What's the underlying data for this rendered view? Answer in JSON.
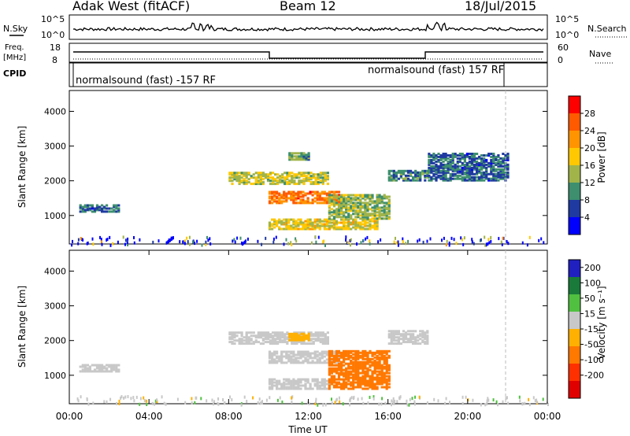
{
  "header": {
    "station": "Adak West (fitACF)",
    "beam": "Beam 12",
    "date": "18/Jul/2015"
  },
  "panels": {
    "nsky": {
      "label": "N.Sky",
      "right_label": "N.Search",
      "ticks": [
        "10^5",
        "10^0"
      ]
    },
    "freq": {
      "label_line1": "Freq.",
      "label_line2": "[MHz]",
      "ticks_left": [
        "18",
        "8"
      ],
      "right_label": "Nave",
      "ticks_right": [
        "60",
        "0"
      ]
    },
    "cpid": {
      "label": "CPID",
      "mode1": "normalsound (fast) -157 RF",
      "mode2": "normalsound (fast) 157 RF"
    }
  },
  "colorbars": {
    "power": {
      "label": "Power [dB]",
      "ticks": [
        "28",
        "24",
        "20",
        "16",
        "12",
        "8",
        "4"
      ],
      "colors": [
        "#ff0000",
        "#ff5a00",
        "#ff9400",
        "#ffc800",
        "#a0b44a",
        "#3d8f6e",
        "#1f3aa0",
        "#0000ff"
      ]
    },
    "velocity": {
      "label": "Velocity [m s⁻¹]",
      "ticks": [
        "200",
        "100",
        "50",
        "15",
        "-15",
        "-50",
        "-100",
        "-200"
      ],
      "colors": [
        "#2020c0",
        "#1a7a3a",
        "#50c040",
        "#c8c8c8",
        "#ffb000",
        "#ff7800",
        "#ff3000",
        "#e00000"
      ]
    }
  },
  "chart_data": [
    {
      "type": "heatmap",
      "name": "power",
      "ylabel": "Slant Range [km]",
      "ylim": [
        180,
        4600
      ],
      "yticks": [
        "1000",
        "2000",
        "3000",
        "4000"
      ],
      "zrange_db": [
        0,
        30
      ],
      "bands": [
        {
          "t0": 8.0,
          "t1": 13.0,
          "r0": 1900,
          "r1": 2250,
          "v": 14
        },
        {
          "t0": 10.0,
          "t1": 13.5,
          "r0": 1350,
          "r1": 1700,
          "v": 24
        },
        {
          "t0": 10.0,
          "t1": 15.5,
          "r0": 600,
          "r1": 900,
          "v": 16
        },
        {
          "t0": 13.0,
          "t1": 16.0,
          "r0": 900,
          "r1": 1600,
          "v": 12
        },
        {
          "t0": 11.0,
          "t1": 12.0,
          "r0": 2600,
          "r1": 2800,
          "v": 10
        },
        {
          "t0": 16.0,
          "t1": 18.0,
          "r0": 2000,
          "r1": 2300,
          "v": 8
        },
        {
          "t0": 18.0,
          "t1": 22.0,
          "r0": 2000,
          "r1": 2800,
          "v": 6
        },
        {
          "t0": 0.5,
          "t1": 2.5,
          "r0": 1100,
          "r1": 1300,
          "v": 6
        }
      ]
    },
    {
      "type": "heatmap",
      "name": "velocity",
      "xlabel": "Time UT",
      "ylabel": "Slant Range [km]",
      "ylim": [
        180,
        4600
      ],
      "yticks": [
        "1000",
        "2000",
        "3000",
        "4000"
      ],
      "xticks": [
        "00:00",
        "04:00",
        "08:00",
        "12:00",
        "16:00",
        "20:00",
        "00:00"
      ],
      "bands": [
        {
          "t0": 8.0,
          "t1": 13.0,
          "r0": 1900,
          "r1": 2250,
          "v": 0
        },
        {
          "t0": 10.0,
          "t1": 13.5,
          "r0": 1350,
          "r1": 1700,
          "v": 0
        },
        {
          "t0": 10.0,
          "t1": 13.0,
          "r0": 600,
          "r1": 900,
          "v": 0
        },
        {
          "t0": 13.0,
          "t1": 16.0,
          "r0": 600,
          "r1": 1700,
          "v": -60
        },
        {
          "t0": 11.0,
          "t1": 12.0,
          "r0": 2000,
          "r1": 2200,
          "v": -40
        },
        {
          "t0": 16.0,
          "t1": 18.0,
          "r0": 1900,
          "r1": 2300,
          "v": 10
        },
        {
          "t0": 0.5,
          "t1": 2.5,
          "r0": 1100,
          "r1": 1300,
          "v": 0
        }
      ]
    }
  ]
}
